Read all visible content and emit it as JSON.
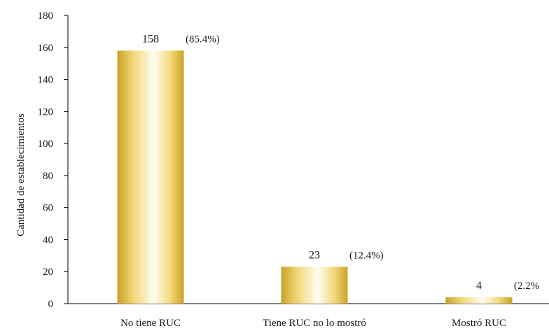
{
  "chart_data": {
    "type": "bar",
    "categories": [
      "No tiene RUC",
      "Tiene RUC no lo mostró",
      "Mostró RUC"
    ],
    "values": [
      158,
      23,
      4
    ],
    "value_labels": [
      "158",
      "23",
      "4"
    ],
    "percent_labels": [
      "(85.4%)",
      "(12.4%)",
      "(2.2%"
    ],
    "title": "",
    "xlabel": "",
    "ylabel": "Cantidad de establecimientos",
    "ylim": [
      0,
      180
    ],
    "yticks": [
      0,
      20,
      40,
      60,
      80,
      100,
      120,
      140,
      160,
      180
    ],
    "grid": false,
    "legend": "none",
    "bar_colors": {
      "edge": "#c9a227",
      "mid": "#f2d97a",
      "center": "#fffdf3"
    }
  }
}
